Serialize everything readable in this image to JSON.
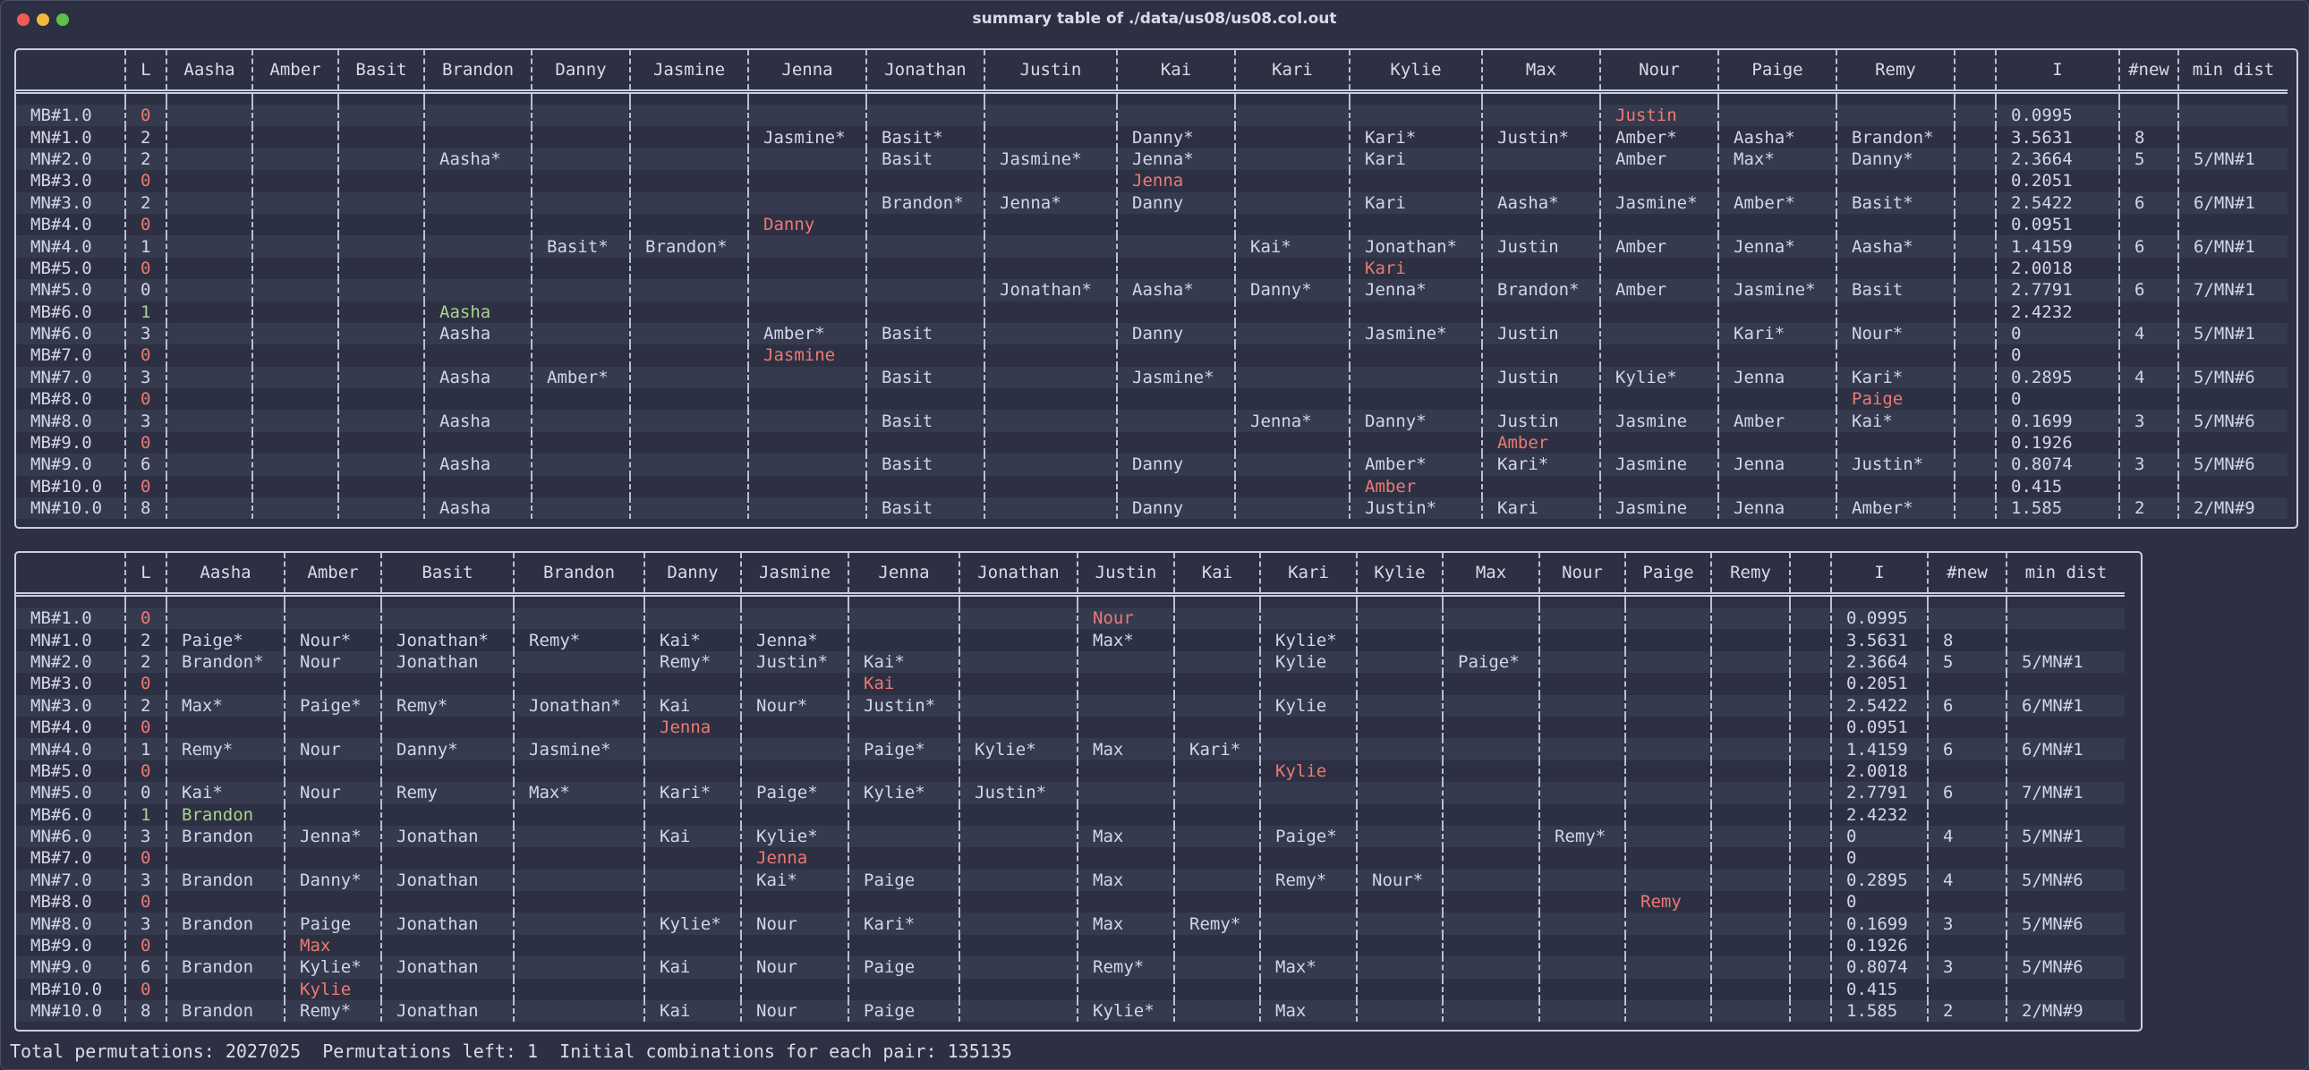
{
  "window": {
    "title": "summary table of ./data/us08/us08.col.out"
  },
  "table1": {
    "columns": [
      "",
      "L",
      "Aasha",
      "Amber",
      "Basit",
      "Brandon",
      "Danny",
      "Jasmine",
      "Jenna",
      "Jonathan",
      "Justin",
      "Kai",
      "Kari",
      "Kylie",
      "Max",
      "Nour",
      "Paige",
      "Remy",
      "",
      "I",
      "#new",
      "min dist"
    ],
    "rows": [
      [
        "MB#1.0",
        "0",
        "",
        "",
        "",
        "",
        "",
        "",
        "",
        "",
        "",
        "",
        "",
        "",
        "",
        "Justin",
        "",
        "",
        "",
        "0.0995",
        "",
        ""
      ],
      [
        "MN#1.0",
        "2",
        "",
        "",
        "",
        "",
        "",
        "",
        "Jasmine*",
        "Basit*",
        "",
        "Danny*",
        "",
        "Kari*",
        "Justin*",
        "Amber*",
        "Aasha*",
        "Brandon*",
        "",
        "3.5631",
        "8",
        ""
      ],
      [
        "MN#2.0",
        "2",
        "",
        "",
        "",
        "Aasha*",
        "",
        "",
        "",
        "Basit",
        "Jasmine*",
        "Jenna*",
        "",
        "Kari",
        "",
        "Amber",
        "Max*",
        "Danny*",
        "",
        "2.3664",
        "5",
        "5/MN#1"
      ],
      [
        "MB#3.0",
        "0",
        "",
        "",
        "",
        "",
        "",
        "",
        "",
        "",
        "",
        "Jenna",
        "",
        "",
        "",
        "",
        "",
        "",
        "",
        "0.2051",
        "",
        ""
      ],
      [
        "MN#3.0",
        "2",
        "",
        "",
        "",
        "",
        "",
        "",
        "",
        "Brandon*",
        "Jenna*",
        "Danny",
        "",
        "Kari",
        "Aasha*",
        "Jasmine*",
        "Amber*",
        "Basit*",
        "",
        "2.5422",
        "6",
        "6/MN#1"
      ],
      [
        "MB#4.0",
        "0",
        "",
        "",
        "",
        "",
        "",
        "",
        "Danny",
        "",
        "",
        "",
        "",
        "",
        "",
        "",
        "",
        "",
        "",
        "0.0951",
        "",
        ""
      ],
      [
        "MN#4.0",
        "1",
        "",
        "",
        "",
        "",
        "Basit*",
        "Brandon*",
        "",
        "",
        "",
        "",
        "Kai*",
        "Jonathan*",
        "Justin",
        "Amber",
        "Jenna*",
        "Aasha*",
        "",
        "1.4159",
        "6",
        "6/MN#1"
      ],
      [
        "MB#5.0",
        "0",
        "",
        "",
        "",
        "",
        "",
        "",
        "",
        "",
        "",
        "",
        "",
        "Kari",
        "",
        "",
        "",
        "",
        "",
        "2.0018",
        "",
        ""
      ],
      [
        "MN#5.0",
        "0",
        "",
        "",
        "",
        "",
        "",
        "",
        "",
        "",
        "Jonathan*",
        "Aasha*",
        "Danny*",
        "Jenna*",
        "Brandon*",
        "Amber",
        "Jasmine*",
        "Basit",
        "",
        "2.7791",
        "6",
        "7/MN#1"
      ],
      [
        "MB#6.0",
        "1",
        "",
        "",
        "",
        "Aasha",
        "",
        "",
        "",
        "",
        "",
        "",
        "",
        "",
        "",
        "",
        "",
        "",
        "",
        "2.4232",
        "",
        ""
      ],
      [
        "MN#6.0",
        "3",
        "",
        "",
        "",
        "Aasha",
        "",
        "",
        "Amber*",
        "Basit",
        "",
        "Danny",
        "",
        "Jasmine*",
        "Justin",
        "",
        "Kari*",
        "Nour*",
        "",
        "0",
        "4",
        "5/MN#1"
      ],
      [
        "MB#7.0",
        "0",
        "",
        "",
        "",
        "",
        "",
        "",
        "Jasmine",
        "",
        "",
        "",
        "",
        "",
        "",
        "",
        "",
        "",
        "",
        "0",
        "",
        ""
      ],
      [
        "MN#7.0",
        "3",
        "",
        "",
        "",
        "Aasha",
        "Amber*",
        "",
        "",
        "Basit",
        "",
        "Jasmine*",
        "",
        "",
        "Justin",
        "Kylie*",
        "Jenna",
        "Kari*",
        "",
        "0.2895",
        "4",
        "5/MN#6"
      ],
      [
        "MB#8.0",
        "0",
        "",
        "",
        "",
        "",
        "",
        "",
        "",
        "",
        "",
        "",
        "",
        "",
        "",
        "",
        "",
        "Paige",
        "",
        "0",
        "",
        ""
      ],
      [
        "MN#8.0",
        "3",
        "",
        "",
        "",
        "Aasha",
        "",
        "",
        "",
        "Basit",
        "",
        "",
        "Jenna*",
        "Danny*",
        "Justin",
        "Jasmine",
        "Amber",
        "Kai*",
        "",
        "0.1699",
        "3",
        "5/MN#6"
      ],
      [
        "MB#9.0",
        "0",
        "",
        "",
        "",
        "",
        "",
        "",
        "",
        "",
        "",
        "",
        "",
        "",
        "Amber",
        "",
        "",
        "",
        "",
        "0.1926",
        "",
        ""
      ],
      [
        "MN#9.0",
        "6",
        "",
        "",
        "",
        "Aasha",
        "",
        "",
        "",
        "Basit",
        "",
        "Danny",
        "",
        "Amber*",
        "Kari*",
        "Jasmine",
        "Jenna",
        "Justin*",
        "",
        "0.8074",
        "3",
        "5/MN#6"
      ],
      [
        "MB#10.0",
        "0",
        "",
        "",
        "",
        "",
        "",
        "",
        "",
        "",
        "",
        "",
        "",
        "Amber",
        "",
        "",
        "",
        "",
        "",
        "0.415",
        "",
        ""
      ],
      [
        "MN#10.0",
        "8",
        "",
        "",
        "",
        "Aasha",
        "",
        "",
        "",
        "Basit",
        "",
        "Danny",
        "",
        "Justin*",
        "Kari",
        "Jasmine",
        "Jenna",
        "Amber*",
        "",
        "1.585",
        "2",
        "2/MN#9"
      ]
    ]
  },
  "table2": {
    "columns": [
      "",
      "L",
      "Aasha",
      "Amber",
      "Basit",
      "Brandon",
      "Danny",
      "Jasmine",
      "Jenna",
      "Jonathan",
      "Justin",
      "Kai",
      "Kari",
      "Kylie",
      "Max",
      "Nour",
      "Paige",
      "Remy",
      "",
      "I",
      "#new",
      "min dist"
    ],
    "rows": [
      [
        "MB#1.0",
        "0",
        "",
        "",
        "",
        "",
        "",
        "",
        "",
        "",
        "Nour",
        "",
        "",
        "",
        "",
        "",
        "",
        "",
        "",
        "0.0995",
        "",
        ""
      ],
      [
        "MN#1.0",
        "2",
        "Paige*",
        "Nour*",
        "Jonathan*",
        "Remy*",
        "Kai*",
        "Jenna*",
        "",
        "",
        "Max*",
        "",
        "Kylie*",
        "",
        "",
        "",
        "",
        "",
        "",
        "3.5631",
        "8",
        ""
      ],
      [
        "MN#2.0",
        "2",
        "Brandon*",
        "Nour",
        "Jonathan",
        "",
        "Remy*",
        "Justin*",
        "Kai*",
        "",
        "",
        "",
        "Kylie",
        "",
        "Paige*",
        "",
        "",
        "",
        "",
        "2.3664",
        "5",
        "5/MN#1"
      ],
      [
        "MB#3.0",
        "0",
        "",
        "",
        "",
        "",
        "",
        "",
        "Kai",
        "",
        "",
        "",
        "",
        "",
        "",
        "",
        "",
        "",
        "",
        "0.2051",
        "",
        ""
      ],
      [
        "MN#3.0",
        "2",
        "Max*",
        "Paige*",
        "Remy*",
        "Jonathan*",
        "Kai",
        "Nour*",
        "Justin*",
        "",
        "",
        "",
        "Kylie",
        "",
        "",
        "",
        "",
        "",
        "",
        "2.5422",
        "6",
        "6/MN#1"
      ],
      [
        "MB#4.0",
        "0",
        "",
        "",
        "",
        "",
        "Jenna",
        "",
        "",
        "",
        "",
        "",
        "",
        "",
        "",
        "",
        "",
        "",
        "",
        "0.0951",
        "",
        ""
      ],
      [
        "MN#4.0",
        "1",
        "Remy*",
        "Nour",
        "Danny*",
        "Jasmine*",
        "",
        "",
        "Paige*",
        "Kylie*",
        "Max",
        "Kari*",
        "",
        "",
        "",
        "",
        "",
        "",
        "",
        "1.4159",
        "6",
        "6/MN#1"
      ],
      [
        "MB#5.0",
        "0",
        "",
        "",
        "",
        "",
        "",
        "",
        "",
        "",
        "",
        "",
        "Kylie",
        "",
        "",
        "",
        "",
        "",
        "",
        "2.0018",
        "",
        ""
      ],
      [
        "MN#5.0",
        "0",
        "Kai*",
        "Nour",
        "Remy",
        "Max*",
        "Kari*",
        "Paige*",
        "Kylie*",
        "Justin*",
        "",
        "",
        "",
        "",
        "",
        "",
        "",
        "",
        "",
        "2.7791",
        "6",
        "7/MN#1"
      ],
      [
        "MB#6.0",
        "1",
        "Brandon",
        "",
        "",
        "",
        "",
        "",
        "",
        "",
        "",
        "",
        "",
        "",
        "",
        "",
        "",
        "",
        "",
        "2.4232",
        "",
        ""
      ],
      [
        "MN#6.0",
        "3",
        "Brandon",
        "Jenna*",
        "Jonathan",
        "",
        "Kai",
        "Kylie*",
        "",
        "",
        "Max",
        "",
        "Paige*",
        "",
        "",
        "Remy*",
        "",
        "",
        "",
        "0",
        "4",
        "5/MN#1"
      ],
      [
        "MB#7.0",
        "0",
        "",
        "",
        "",
        "",
        "",
        "Jenna",
        "",
        "",
        "",
        "",
        "",
        "",
        "",
        "",
        "",
        "",
        "",
        "0",
        "",
        ""
      ],
      [
        "MN#7.0",
        "3",
        "Brandon",
        "Danny*",
        "Jonathan",
        "",
        "",
        "Kai*",
        "Paige",
        "",
        "Max",
        "",
        "Remy*",
        "Nour*",
        "",
        "",
        "",
        "",
        "",
        "0.2895",
        "4",
        "5/MN#6"
      ],
      [
        "MB#8.0",
        "0",
        "",
        "",
        "",
        "",
        "",
        "",
        "",
        "",
        "",
        "",
        "",
        "",
        "",
        "",
        "Remy",
        "",
        "",
        "0",
        "",
        ""
      ],
      [
        "MN#8.0",
        "3",
        "Brandon",
        "Paige",
        "Jonathan",
        "",
        "Kylie*",
        "Nour",
        "Kari*",
        "",
        "Max",
        "Remy*",
        "",
        "",
        "",
        "",
        "",
        "",
        "",
        "0.1699",
        "3",
        "5/MN#6"
      ],
      [
        "MB#9.0",
        "0",
        "",
        "Max",
        "",
        "",
        "",
        "",
        "",
        "",
        "",
        "",
        "",
        "",
        "",
        "",
        "",
        "",
        "",
        "0.1926",
        "",
        ""
      ],
      [
        "MN#9.0",
        "6",
        "Brandon",
        "Kylie*",
        "Jonathan",
        "",
        "Kai",
        "Nour",
        "Paige",
        "",
        "Remy*",
        "",
        "Max*",
        "",
        "",
        "",
        "",
        "",
        "",
        "0.8074",
        "3",
        "5/MN#6"
      ],
      [
        "MB#10.0",
        "0",
        "",
        "Kylie",
        "",
        "",
        "",
        "",
        "",
        "",
        "",
        "",
        "",
        "",
        "",
        "",
        "",
        "",
        "",
        "0.415",
        "",
        ""
      ],
      [
        "MN#10.0",
        "8",
        "Brandon",
        "Remy*",
        "Jonathan",
        "",
        "Kai",
        "Nour",
        "Paige",
        "",
        "Kylie*",
        "",
        "Max",
        "",
        "",
        "",
        "",
        "",
        "",
        "1.585",
        "2",
        "2/MN#9"
      ]
    ]
  },
  "footer": {
    "total_label": "Total permutations:",
    "total_value": "2027025",
    "left_label": "Permutations left:",
    "left_value": "1",
    "initial_label": "Initial combinations for each pair:",
    "initial_value": "135135"
  },
  "colors": {
    "background": "#2d3042",
    "row_alt": "#363a4f",
    "mb_zero": "#ec7a73",
    "mb_one": "#a9d48e",
    "text": "#d3d6e6",
    "border": "#c9cde2"
  }
}
